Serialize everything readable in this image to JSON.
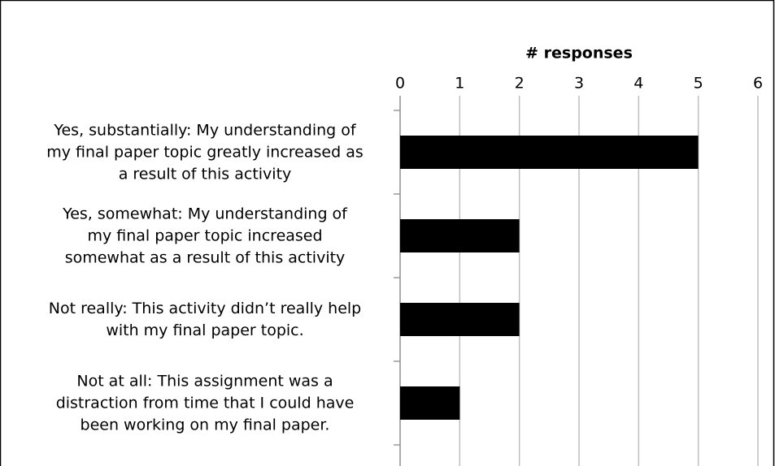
{
  "chart_data": {
    "type": "bar",
    "orientation": "horizontal",
    "title": "# responses",
    "categories": [
      [
        "Yes, substantially: My understanding of",
        "my final paper topic greatly increased as",
        "a result of this activity"
      ],
      [
        "Yes, somewhat: My understanding of",
        "my final paper topic increased",
        "somewhat as a result of this activity"
      ],
      [
        "Not really: This activity didn’t really help",
        "with my final paper topic."
      ],
      [
        "Not at all: This assignment was a",
        "distraction from time that I could have",
        "been working on my final paper."
      ]
    ],
    "values": [
      5,
      2,
      2,
      1
    ],
    "color": "#000000",
    "xlim": [
      0,
      6
    ],
    "xticks": [
      0,
      1,
      2,
      3,
      4,
      5,
      6
    ],
    "grid": true
  }
}
